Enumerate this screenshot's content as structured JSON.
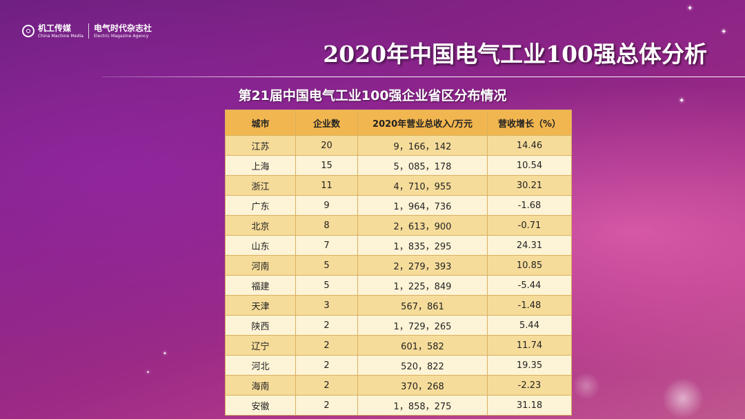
{
  "logo": {
    "brand_cn": "机工传媒",
    "brand_en": "China Machine Media",
    "magazine_cn": "电气时代杂志社",
    "magazine_en": "Electric Magazine Agency"
  },
  "title": "2020年中国电气工业100强总体分析",
  "subtitle": "第21届中国电气工业100强企业省区分布情况",
  "table": {
    "headers": [
      "城市",
      "企业数",
      "2020年营业总收入/万元",
      "营收增长（%）"
    ],
    "rows": [
      [
        "江苏",
        "20",
        "9，166，142",
        "14.46"
      ],
      [
        "上海",
        "15",
        "5，085，178",
        "10.54"
      ],
      [
        "浙江",
        "11",
        "4，710，955",
        "30.21"
      ],
      [
        "广东",
        "9",
        "1，964，736",
        "-1.68"
      ],
      [
        "北京",
        "8",
        "2，613，900",
        "-0.71"
      ],
      [
        "山东",
        "7",
        "1，835，295",
        "24.31"
      ],
      [
        "河南",
        "5",
        "2，279，393",
        "10.85"
      ],
      [
        "福建",
        "5",
        "1，225，849",
        "-5.44"
      ],
      [
        "天津",
        "3",
        "567，861",
        "-1.48"
      ],
      [
        "陕西",
        "2",
        "1，729，265",
        "5.44"
      ],
      [
        "辽宁",
        "2",
        "601，582",
        "11.74"
      ],
      [
        "河北",
        "2",
        "520，822",
        "19.35"
      ],
      [
        "海南",
        "2",
        "370，268",
        "-2.23"
      ],
      [
        "安徽",
        "2",
        "1，858，275",
        "31.18"
      ]
    ]
  },
  "colors": {
    "header_bg": "#f2b650",
    "row_odd": "#f6dc9a",
    "row_even": "#fdf3d6"
  }
}
